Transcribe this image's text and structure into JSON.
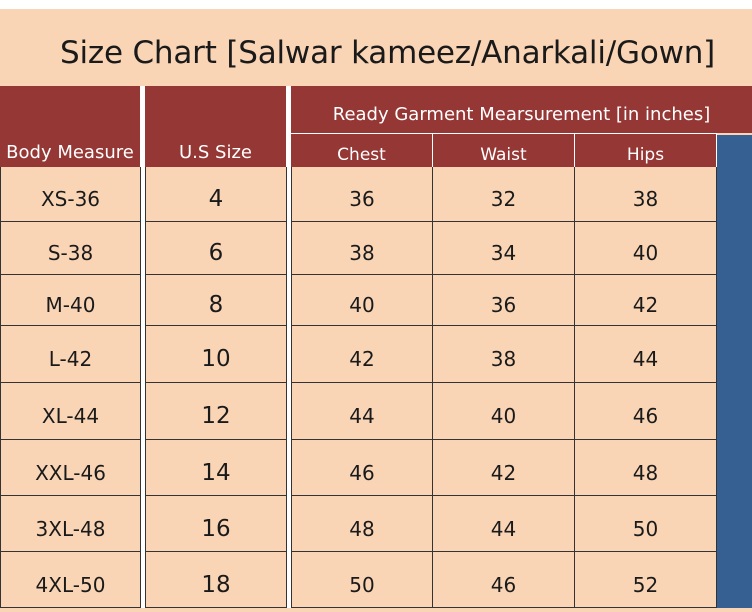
{
  "title": "Size Chart [Salwar kameez/Anarkali/Gown]",
  "headers": {
    "body_measure": "Body Measure",
    "us_size": "U.S Size",
    "group": "Ready Garment Mearsurement [in inches]",
    "chest": "Chest",
    "waist": "Waist",
    "hips": "Hips"
  },
  "rows": [
    {
      "body": "XS-36",
      "us": "4",
      "chest": "36",
      "waist": "32",
      "hips": "38"
    },
    {
      "body": "S-38",
      "us": "6",
      "chest": "38",
      "waist": "34",
      "hips": "40"
    },
    {
      "body": "M-40",
      "us": "8",
      "chest": "40",
      "waist": "36",
      "hips": "42"
    },
    {
      "body": "L-42",
      "us": "10",
      "chest": "42",
      "waist": "38",
      "hips": "44"
    },
    {
      "body": "XL-44",
      "us": "12",
      "chest": "44",
      "waist": "40",
      "hips": "46"
    },
    {
      "body": "XXL-46",
      "us": "14",
      "chest": "46",
      "waist": "42",
      "hips": "48"
    },
    {
      "body": "3XL-48",
      "us": "16",
      "chest": "48",
      "waist": "44",
      "hips": "50"
    },
    {
      "body": "4XL-50",
      "us": "18",
      "chest": "50",
      "waist": "46",
      "hips": "52"
    }
  ],
  "colors": {
    "header_bg": "#953735",
    "sheet_bg": "#f9d5b6",
    "side_bar": "#376092"
  }
}
